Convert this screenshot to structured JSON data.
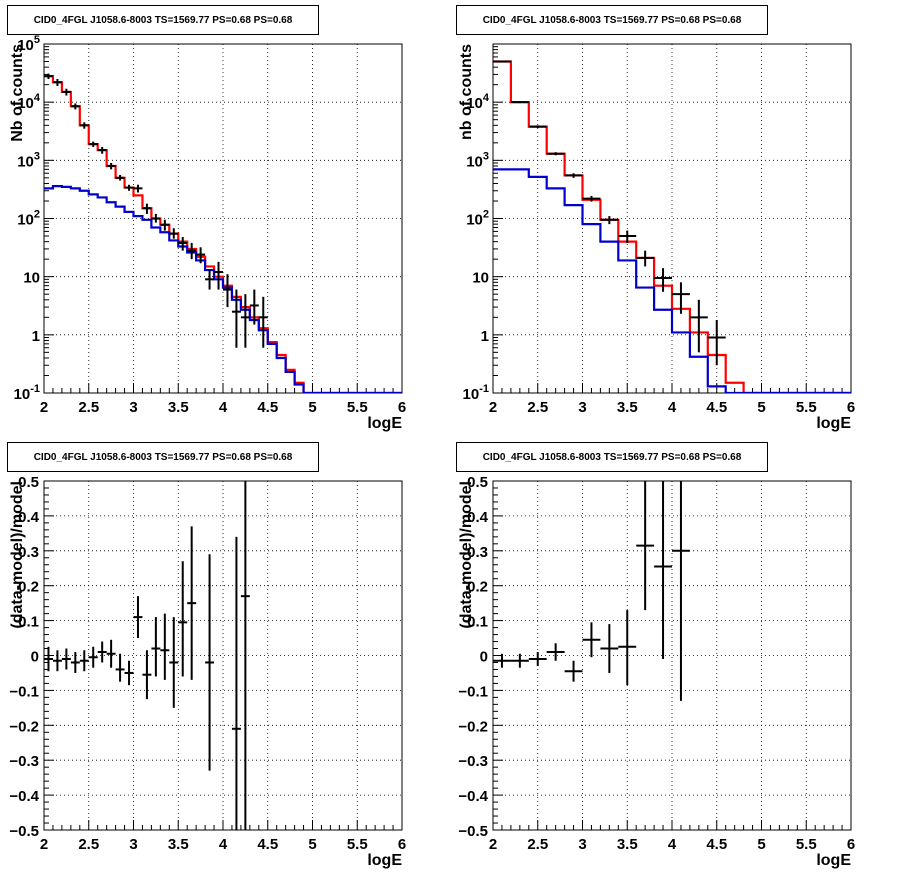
{
  "panel_title": "CID0_4FGL J1058.6-8003 TS=1569.77 PS=0.68 PS=0.68",
  "colors": {
    "data": "#000000",
    "total_model": "#ff0000",
    "source_model": "#0000cc",
    "grid": "#000000"
  },
  "chart_data": [
    {
      "type": "line",
      "title": "CID0_4FGL J1058.6-8003 TS=1569.77 PS=0.68 PS=0.68",
      "xlabel": "logE",
      "ylabel": "Nb of counts",
      "xlim": [
        2,
        6
      ],
      "ylim": [
        0.1,
        100000
      ],
      "yscale": "log",
      "grid": true,
      "xticks": [
        "2",
        "2.5",
        "3",
        "3.5",
        "4",
        "4.5",
        "5",
        "5.5",
        "6"
      ],
      "yticks": [
        "10^-1",
        "1",
        "10",
        "10^2",
        "10^3",
        "10^4",
        "10^5"
      ],
      "series": [
        {
          "style": "step",
          "color": "#ff0000",
          "edges": [
            2.0,
            2.1,
            2.2,
            2.3,
            2.4,
            2.5,
            2.6,
            2.7,
            2.8,
            2.9,
            3.0,
            3.1,
            3.2,
            3.3,
            3.4,
            3.5,
            3.6,
            3.7,
            3.8,
            3.9,
            4.0,
            4.1,
            4.2,
            4.3,
            4.4,
            4.5,
            4.6,
            4.7,
            4.8,
            4.9,
            5.0,
            5.1,
            5.2,
            5.3,
            5.4,
            5.5,
            5.6,
            5.7,
            5.8,
            5.9,
            6.0
          ],
          "values": [
            28000,
            22000,
            15000,
            8500,
            4000,
            1900,
            1500,
            800,
            500,
            340,
            250,
            150,
            100,
            78,
            55,
            40,
            30,
            22,
            15,
            10,
            7,
            4.5,
            3.0,
            2.0,
            1.3,
            0.75,
            0.45,
            0.25,
            0.15,
            0.1,
            0.1,
            0.1,
            0.1,
            0.1,
            0.1,
            0.1,
            0.1,
            0.1,
            0.1,
            0.1
          ]
        },
        {
          "style": "step",
          "color": "#0000cc",
          "edges": [
            2.0,
            2.1,
            2.2,
            2.3,
            2.4,
            2.5,
            2.6,
            2.7,
            2.8,
            2.9,
            3.0,
            3.1,
            3.2,
            3.3,
            3.4,
            3.5,
            3.6,
            3.7,
            3.8,
            3.9,
            4.0,
            4.1,
            4.2,
            4.3,
            4.4,
            4.5,
            4.6,
            4.7,
            4.8,
            4.9,
            5.0,
            5.1,
            5.2,
            5.3,
            5.4,
            5.5,
            5.6,
            5.7,
            5.8,
            5.9,
            6.0
          ],
          "values": [
            330,
            360,
            350,
            330,
            300,
            260,
            230,
            190,
            160,
            130,
            110,
            95,
            70,
            58,
            42,
            33,
            26,
            19,
            13,
            9,
            6.5,
            4.0,
            2.7,
            1.8,
            1.2,
            0.7,
            0.4,
            0.23,
            0.14,
            0.1,
            0.1,
            0.1,
            0.1,
            0.1,
            0.1,
            0.1,
            0.1,
            0.1,
            0.1,
            0.1
          ]
        },
        {
          "style": "points",
          "color": "#000000",
          "x": [
            2.05,
            2.15,
            2.25,
            2.35,
            2.45,
            2.55,
            2.65,
            2.75,
            2.85,
            2.95,
            3.05,
            3.15,
            3.25,
            3.35,
            3.45,
            3.55,
            3.65,
            3.75,
            3.85,
            3.95,
            4.05,
            4.15,
            4.25,
            4.35,
            4.45
          ],
          "y": [
            28000,
            22000,
            15000,
            8500,
            4000,
            1900,
            1500,
            800,
            500,
            340,
            330,
            150,
            100,
            78,
            55,
            38,
            28,
            24,
            9,
            12,
            6,
            2.5,
            2,
            3.2,
            2
          ],
          "ylo": [
            25000,
            19000,
            13000,
            7500,
            3500,
            1700,
            1300,
            700,
            450,
            300,
            280,
            120,
            85,
            62,
            45,
            28,
            20,
            17,
            6,
            6,
            3,
            0.6,
            0.6,
            1.5,
            0.6
          ],
          "yhi": [
            31000,
            25000,
            17000,
            9500,
            4500,
            2100,
            1700,
            900,
            560,
            380,
            380,
            180,
            120,
            95,
            68,
            48,
            38,
            32,
            13,
            18,
            11,
            6,
            5,
            6,
            4.5
          ],
          "xerr": 0.05
        }
      ]
    },
    {
      "type": "line",
      "title": "CID0_4FGL J1058.6-8003 TS=1569.77 PS=0.68 PS=0.68",
      "xlabel": "logE",
      "ylabel": "nb of counts",
      "xlim": [
        2,
        6
      ],
      "ylim": [
        0.1,
        100000
      ],
      "yscale": "log",
      "grid": true,
      "xticks": [
        "2",
        "2.5",
        "3",
        "3.5",
        "4",
        "4.5",
        "5",
        "5.5",
        "6"
      ],
      "yticks": [
        "10^-1",
        "1",
        "10",
        "10^2",
        "10^3",
        "10^4"
      ],
      "series": [
        {
          "style": "step",
          "color": "#ff0000",
          "edges": [
            2.0,
            2.2,
            2.4,
            2.6,
            2.8,
            3.0,
            3.2,
            3.4,
            3.6,
            3.8,
            4.0,
            4.2,
            4.4,
            4.6,
            4.8,
            5.0,
            5.2,
            5.4,
            5.6,
            5.8,
            6.0
          ],
          "values": [
            50000,
            10000,
            3800,
            1300,
            550,
            210,
            95,
            40,
            21,
            7,
            2.8,
            1.1,
            0.45,
            0.15,
            0.1,
            0.1,
            0.1,
            0.1,
            0.1,
            0.1
          ]
        },
        {
          "style": "step",
          "color": "#0000cc",
          "edges": [
            2.0,
            2.2,
            2.4,
            2.6,
            2.8,
            3.0,
            3.2,
            3.4,
            3.6,
            3.8,
            4.0,
            4.2,
            4.4,
            4.6,
            4.8,
            5.0,
            5.2,
            5.4,
            5.6,
            5.8,
            6.0
          ],
          "values": [
            700,
            700,
            520,
            330,
            170,
            80,
            40,
            19,
            6.5,
            2.7,
            1.1,
            0.42,
            0.13,
            0.1,
            0.1,
            0.1,
            0.1,
            0.1,
            0.1,
            0.1
          ]
        },
        {
          "style": "points",
          "color": "#000000",
          "x": [
            2.1,
            2.3,
            2.5,
            2.7,
            2.9,
            3.1,
            3.3,
            3.5,
            3.7,
            3.9,
            4.1,
            4.3,
            4.5
          ],
          "y": [
            50000,
            10000,
            3800,
            1300,
            550,
            220,
            95,
            50,
            21,
            9.5,
            5,
            2,
            0.9
          ],
          "ylo": [
            48000,
            9600,
            3600,
            1220,
            500,
            195,
            80,
            38,
            15,
            5.5,
            2.3,
            0.5,
            0.3
          ],
          "yhi": [
            52000,
            10400,
            4000,
            1380,
            600,
            245,
            110,
            62,
            28,
            14,
            8,
            4,
            1.8
          ],
          "xerr": 0.1
        }
      ]
    },
    {
      "type": "scatter",
      "title": "CID0_4FGL J1058.6-8003 TS=1569.77 PS=0.68 PS=0.68",
      "xlabel": "logE",
      "ylabel": "(data-model)/model",
      "xlim": [
        2,
        6
      ],
      "ylim": [
        -0.5,
        0.5
      ],
      "grid": true,
      "xticks": [
        "2",
        "2.5",
        "3",
        "3.5",
        "4",
        "4.5",
        "5",
        "5.5",
        "6"
      ],
      "yticks": [
        "−0.5",
        "−0.4",
        "−0.3",
        "−0.2",
        "−0.1",
        "0",
        "0.1",
        "0.2",
        "0.3",
        "0.4",
        "0.5"
      ],
      "series": [
        {
          "style": "points",
          "color": "#000000",
          "x": [
            2.05,
            2.15,
            2.25,
            2.35,
            2.45,
            2.55,
            2.65,
            2.75,
            2.85,
            2.95,
            3.05,
            3.15,
            3.25,
            3.35,
            3.45,
            3.55,
            3.65,
            3.85,
            4.15,
            4.25
          ],
          "y": [
            -0.01,
            -0.015,
            -0.01,
            -0.02,
            -0.015,
            -0.005,
            0.01,
            0.005,
            -0.04,
            -0.05,
            0.11,
            -0.055,
            0.02,
            0.015,
            -0.02,
            0.095,
            0.15,
            -0.02,
            -0.21,
            0.17
          ],
          "ylo": [
            -0.045,
            -0.045,
            -0.04,
            -0.05,
            -0.045,
            -0.035,
            -0.02,
            -0.035,
            -0.075,
            -0.085,
            0.05,
            -0.125,
            -0.06,
            -0.07,
            -0.15,
            -0.06,
            -0.07,
            -0.33,
            -0.5,
            -0.5
          ],
          "yhi": [
            0.025,
            0.015,
            0.02,
            0.01,
            0.015,
            0.025,
            0.04,
            0.045,
            0.005,
            -0.015,
            0.17,
            0.015,
            0.11,
            0.12,
            0.11,
            0.27,
            0.37,
            0.29,
            0.34,
            0.5
          ],
          "xerr": 0.05
        }
      ]
    },
    {
      "type": "scatter",
      "title": "CID0_4FGL J1058.6-8003 TS=1569.77 PS=0.68 PS=0.68",
      "xlabel": "logE",
      "ylabel": "(data-model)/model",
      "xlim": [
        2,
        6
      ],
      "ylim": [
        -0.5,
        0.5
      ],
      "grid": true,
      "xticks": [
        "2",
        "2.5",
        "3",
        "3.5",
        "4",
        "4.5",
        "5",
        "5.5",
        "6"
      ],
      "yticks": [
        "−0.5",
        "−0.4",
        "−0.3",
        "−0.2",
        "−0.1",
        "0",
        "0.1",
        "0.2",
        "0.3",
        "0.4",
        "0.5"
      ],
      "series": [
        {
          "style": "points",
          "color": "#000000",
          "x": [
            2.1,
            2.3,
            2.5,
            2.7,
            2.9,
            3.1,
            3.3,
            3.5,
            3.7,
            3.9,
            4.1
          ],
          "y": [
            -0.015,
            -0.015,
            -0.01,
            0.01,
            -0.045,
            0.045,
            0.02,
            0.025,
            0.315,
            0.255,
            0.3
          ],
          "ylo": [
            -0.035,
            -0.035,
            -0.03,
            -0.015,
            -0.075,
            -0.005,
            -0.05,
            -0.085,
            0.13,
            -0.01,
            -0.13
          ],
          "yhi": [
            0.005,
            0.005,
            0.01,
            0.035,
            -0.015,
            0.095,
            0.09,
            0.13,
            0.5,
            0.5,
            0.5
          ],
          "xerr": 0.1
        }
      ]
    }
  ]
}
